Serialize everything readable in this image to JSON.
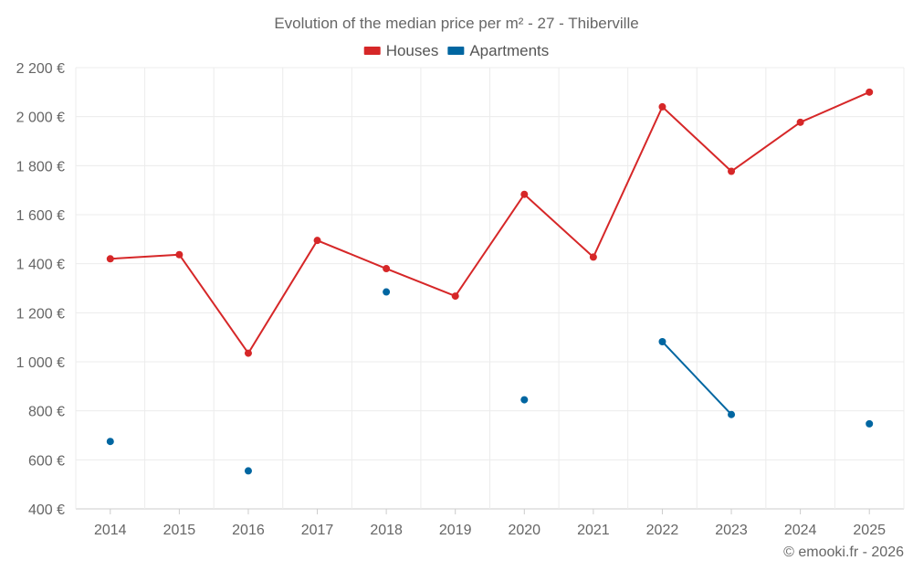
{
  "chart_data": {
    "type": "line",
    "title": "Evolution of the median price per m² - 27 - Thiberville",
    "categories": [
      "2014",
      "2015",
      "2016",
      "2017",
      "2018",
      "2019",
      "2020",
      "2021",
      "2022",
      "2023",
      "2024",
      "2025"
    ],
    "series": [
      {
        "name": "Houses",
        "color": "#d62728",
        "values": [
          1420,
          1437,
          1035,
          1495,
          1380,
          1268,
          1683,
          1427,
          2040,
          1777,
          1977,
          2100
        ]
      },
      {
        "name": "Apartments",
        "color": "#0066a1",
        "values": [
          675,
          null,
          555,
          null,
          1285,
          null,
          845,
          null,
          1082,
          785,
          null,
          747
        ]
      }
    ],
    "ylim": [
      400,
      2200
    ],
    "yticks": [
      400,
      600,
      800,
      1000,
      1200,
      1400,
      1600,
      1800,
      2000,
      2200
    ],
    "ytick_labels": [
      "400 €",
      "600 €",
      "800 €",
      "1 000 €",
      "1 200 €",
      "1 400 €",
      "1 600 €",
      "1 800 €",
      "2 000 €",
      "2 200 €"
    ],
    "legend_position": "top-center",
    "grid": true
  },
  "credit": "© emooki.fr - 2026"
}
